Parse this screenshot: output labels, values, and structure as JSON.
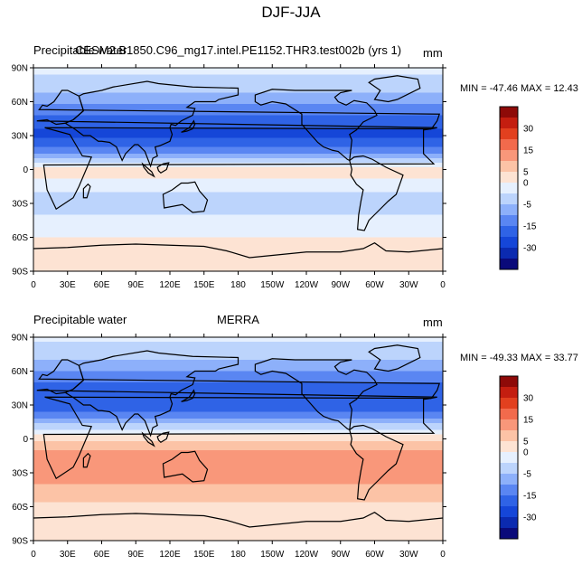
{
  "figure": {
    "title": "DJF-JJA"
  },
  "colors": {
    "levels": [
      "#0a0a7a",
      "#0b2ab0",
      "#1546d8",
      "#2f63e6",
      "#5a86f2",
      "#8db0fa",
      "#bcd4fc",
      "#e6f0fe",
      "#fde3d3",
      "#fcc3a6",
      "#f9977a",
      "#f26a4c",
      "#e2401f",
      "#c41e10",
      "#8e0a08"
    ],
    "land_outline": "#000000"
  },
  "panels": [
    {
      "left_title": "Precipitable water",
      "center_title": "CESM2.B1850.C96_mg17.intel.PE1152.THR3.test002b (yrs 1)",
      "units": "mm",
      "min_max": "MIN = -47.46 MAX =  12.43"
    },
    {
      "left_title": "Precipitable water",
      "center_title": "MERRA",
      "units": "mm",
      "min_max": "MIN = -49.33 MAX =  33.77"
    }
  ],
  "chart_data": [
    {
      "type": "heatmap",
      "title": "DJF-JJA",
      "subtitle": "CESM2.B1850.C96_mg17.intel.PE1152.THR3.test002b (yrs 1)",
      "variable": "Precipitable water",
      "units": "mm",
      "min": -47.46,
      "max": 12.43,
      "x_ticks": [
        "0",
        "30E",
        "60E",
        "90E",
        "120E",
        "150E",
        "180",
        "150W",
        "120W",
        "90W",
        "60W",
        "30W",
        "0"
      ],
      "y_ticks": [
        "90N",
        "60N",
        "30N",
        "0",
        "30S",
        "60S",
        "90S"
      ],
      "colorbar_ticks": [
        "30",
        "15",
        "5",
        "0",
        "-5",
        "-15",
        "-30"
      ],
      "colorbar_levels": [
        -40,
        -35,
        -30,
        -25,
        -20,
        -15,
        -10,
        -5,
        0,
        5,
        10,
        15,
        20,
        25,
        30,
        35
      ],
      "zonal_profile": {
        "lat": [
          90,
          75,
          60,
          45,
          30,
          15,
          5,
          0,
          -5,
          -15,
          -30,
          -45,
          -60,
          -75,
          -90
        ],
        "value": [
          -4,
          -7,
          -14,
          -22,
          -27,
          -16,
          -5,
          2,
          1,
          -4,
          -7,
          -4,
          0,
          2,
          1
        ]
      }
    },
    {
      "type": "heatmap",
      "title": "DJF-JJA",
      "subtitle": "MERRA",
      "variable": "Precipitable water",
      "units": "mm",
      "min": -49.33,
      "max": 33.77,
      "x_ticks": [
        "0",
        "30E",
        "60E",
        "90E",
        "120E",
        "150E",
        "180",
        "150W",
        "120W",
        "90W",
        "60W",
        "30W",
        "0"
      ],
      "y_ticks": [
        "90N",
        "60N",
        "30N",
        "0",
        "30S",
        "60S",
        "90S"
      ],
      "colorbar_ticks": [
        "30",
        "15",
        "5",
        "0",
        "-5",
        "-15",
        "-30"
      ],
      "colorbar_levels": [
        -40,
        -35,
        -30,
        -25,
        -20,
        -15,
        -10,
        -5,
        0,
        5,
        10,
        15,
        20,
        25,
        30,
        35
      ],
      "zonal_profile": {
        "lat": [
          90,
          75,
          60,
          45,
          30,
          15,
          5,
          0,
          -5,
          -15,
          -30,
          -45,
          -60,
          -75,
          -90
        ],
        "value": [
          -4,
          -8,
          -15,
          -22,
          -25,
          -12,
          -2,
          3,
          7,
          12,
          14,
          8,
          4,
          2,
          1
        ]
      }
    }
  ]
}
